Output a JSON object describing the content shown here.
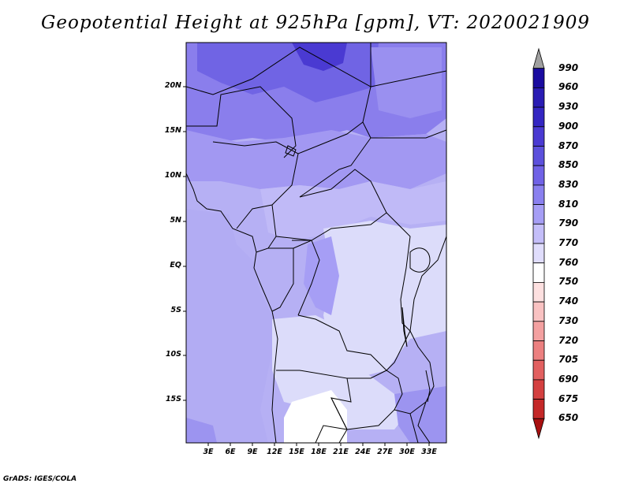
{
  "title": "Geopotential Height at 925hPa [gpm], VT: 2020021909",
  "credit": "GrADS: IGES/COLA",
  "lat_ticks": [
    "20N",
    "15N",
    "10N",
    "5N",
    "EQ",
    "5S",
    "10S",
    "15S"
  ],
  "lon_ticks": [
    "3E",
    "6E",
    "9E",
    "12E",
    "15E",
    "18E",
    "21E",
    "24E",
    "27E",
    "30E",
    "33E"
  ],
  "colorbar": {
    "labels": [
      "990",
      "960",
      "930",
      "900",
      "870",
      "850",
      "830",
      "810",
      "790",
      "770",
      "760",
      "750",
      "740",
      "730",
      "720",
      "705",
      "690",
      "675",
      "650"
    ],
    "colors": [
      "#a0a0a0",
      "#1a0ca0",
      "#2a1cb4",
      "#3426c2",
      "#4a3ad2",
      "#5c50dc",
      "#7062e6",
      "#8a80ef",
      "#a69ef5",
      "#c4bef9",
      "#e0ddfc",
      "#ffffff",
      "#fde0e0",
      "#f9c2c2",
      "#f3a0a0",
      "#ec8080",
      "#e26060",
      "#d44040",
      "#c42828",
      "#a81010"
    ]
  },
  "colors": {
    "light": "#dcdcfa",
    "mid_light": "#c8c4f6",
    "mid": "#b6b0f4",
    "mid_dark": "#a298f2",
    "dark": "#8a7eec",
    "darker": "#7064e4",
    "darkest": "#4a3ad2"
  }
}
